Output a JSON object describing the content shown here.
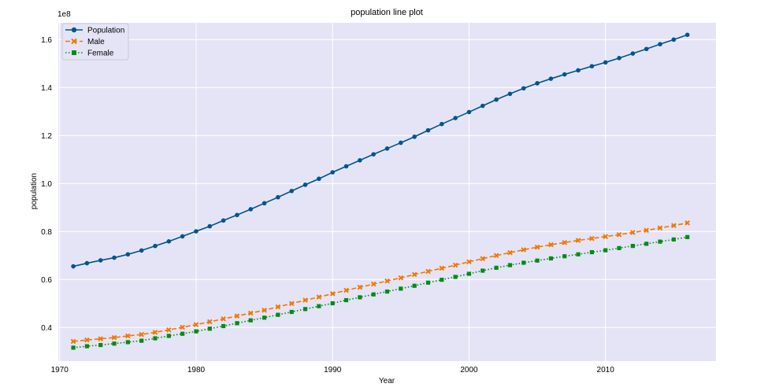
{
  "chart_data": {
    "type": "line",
    "title": "population line plot",
    "xlabel": "Year",
    "ylabel": "population",
    "y_offset_text": "1e8",
    "xlim": [
      1969.9,
      2018.1
    ],
    "ylim": [
      0.26,
      1.67
    ],
    "x_ticks": [
      1970,
      1980,
      1990,
      2000,
      2010
    ],
    "y_ticks": [
      0.4,
      0.6,
      0.8,
      1.0,
      1.2,
      1.4,
      1.6
    ],
    "x_tick_labels": [
      "1970",
      "1980",
      "1990",
      "2000",
      "2010"
    ],
    "y_tick_labels": [
      "0.4",
      "0.6",
      "0.8",
      "1.0",
      "1.2",
      "1.4",
      "1.6"
    ],
    "grid": true,
    "legend_position": "top-left",
    "background_color": "#e4e4f6",
    "x": [
      1971,
      1972,
      1973,
      1974,
      1975,
      1976,
      1977,
      1978,
      1979,
      1980,
      1981,
      1982,
      1983,
      1984,
      1985,
      1986,
      1987,
      1988,
      1989,
      1990,
      1991,
      1992,
      1993,
      1994,
      1995,
      1996,
      1997,
      1998,
      1999,
      2000,
      2001,
      2002,
      2003,
      2004,
      2005,
      2006,
      2007,
      2008,
      2009,
      2010,
      2011,
      2012,
      2013,
      2014,
      2015,
      2016
    ],
    "series": [
      {
        "name": "Population",
        "color": "#00558c",
        "marker": "circle",
        "linestyle": "solid",
        "values": [
          0.655,
          0.668,
          0.68,
          0.691,
          0.705,
          0.721,
          0.74,
          0.759,
          0.78,
          0.801,
          0.822,
          0.846,
          0.869,
          0.893,
          0.918,
          0.943,
          0.969,
          0.995,
          1.02,
          1.047,
          1.072,
          1.097,
          1.122,
          1.146,
          1.17,
          1.195,
          1.222,
          1.248,
          1.273,
          1.298,
          1.324,
          1.35,
          1.374,
          1.397,
          1.418,
          1.437,
          1.455,
          1.472,
          1.489,
          1.505,
          1.523,
          1.542,
          1.561,
          1.581,
          1.6,
          1.62
        ]
      },
      {
        "name": "Male",
        "color": "#f07800",
        "marker": "x",
        "linestyle": "dashed",
        "values": [
          0.342,
          0.348,
          0.353,
          0.358,
          0.365,
          0.371,
          0.38,
          0.39,
          0.401,
          0.412,
          0.424,
          0.436,
          0.448,
          0.46,
          0.472,
          0.486,
          0.5,
          0.514,
          0.527,
          0.541,
          0.555,
          0.568,
          0.581,
          0.594,
          0.607,
          0.621,
          0.634,
          0.647,
          0.66,
          0.674,
          0.687,
          0.7,
          0.712,
          0.724,
          0.735,
          0.745,
          0.754,
          0.763,
          0.771,
          0.779,
          0.787,
          0.796,
          0.805,
          0.815,
          0.825,
          0.836
        ]
      },
      {
        "name": "Female",
        "color": "#008c14",
        "marker": "square",
        "linestyle": "dotted",
        "values": [
          0.316,
          0.322,
          0.327,
          0.333,
          0.339,
          0.345,
          0.355,
          0.365,
          0.374,
          0.384,
          0.395,
          0.406,
          0.418,
          0.43,
          0.441,
          0.453,
          0.465,
          0.477,
          0.489,
          0.501,
          0.514,
          0.526,
          0.538,
          0.55,
          0.562,
          0.574,
          0.587,
          0.599,
          0.611,
          0.624,
          0.637,
          0.649,
          0.66,
          0.67,
          0.679,
          0.688,
          0.697,
          0.705,
          0.714,
          0.722,
          0.731,
          0.74,
          0.749,
          0.758,
          0.767,
          0.777
        ]
      }
    ]
  }
}
